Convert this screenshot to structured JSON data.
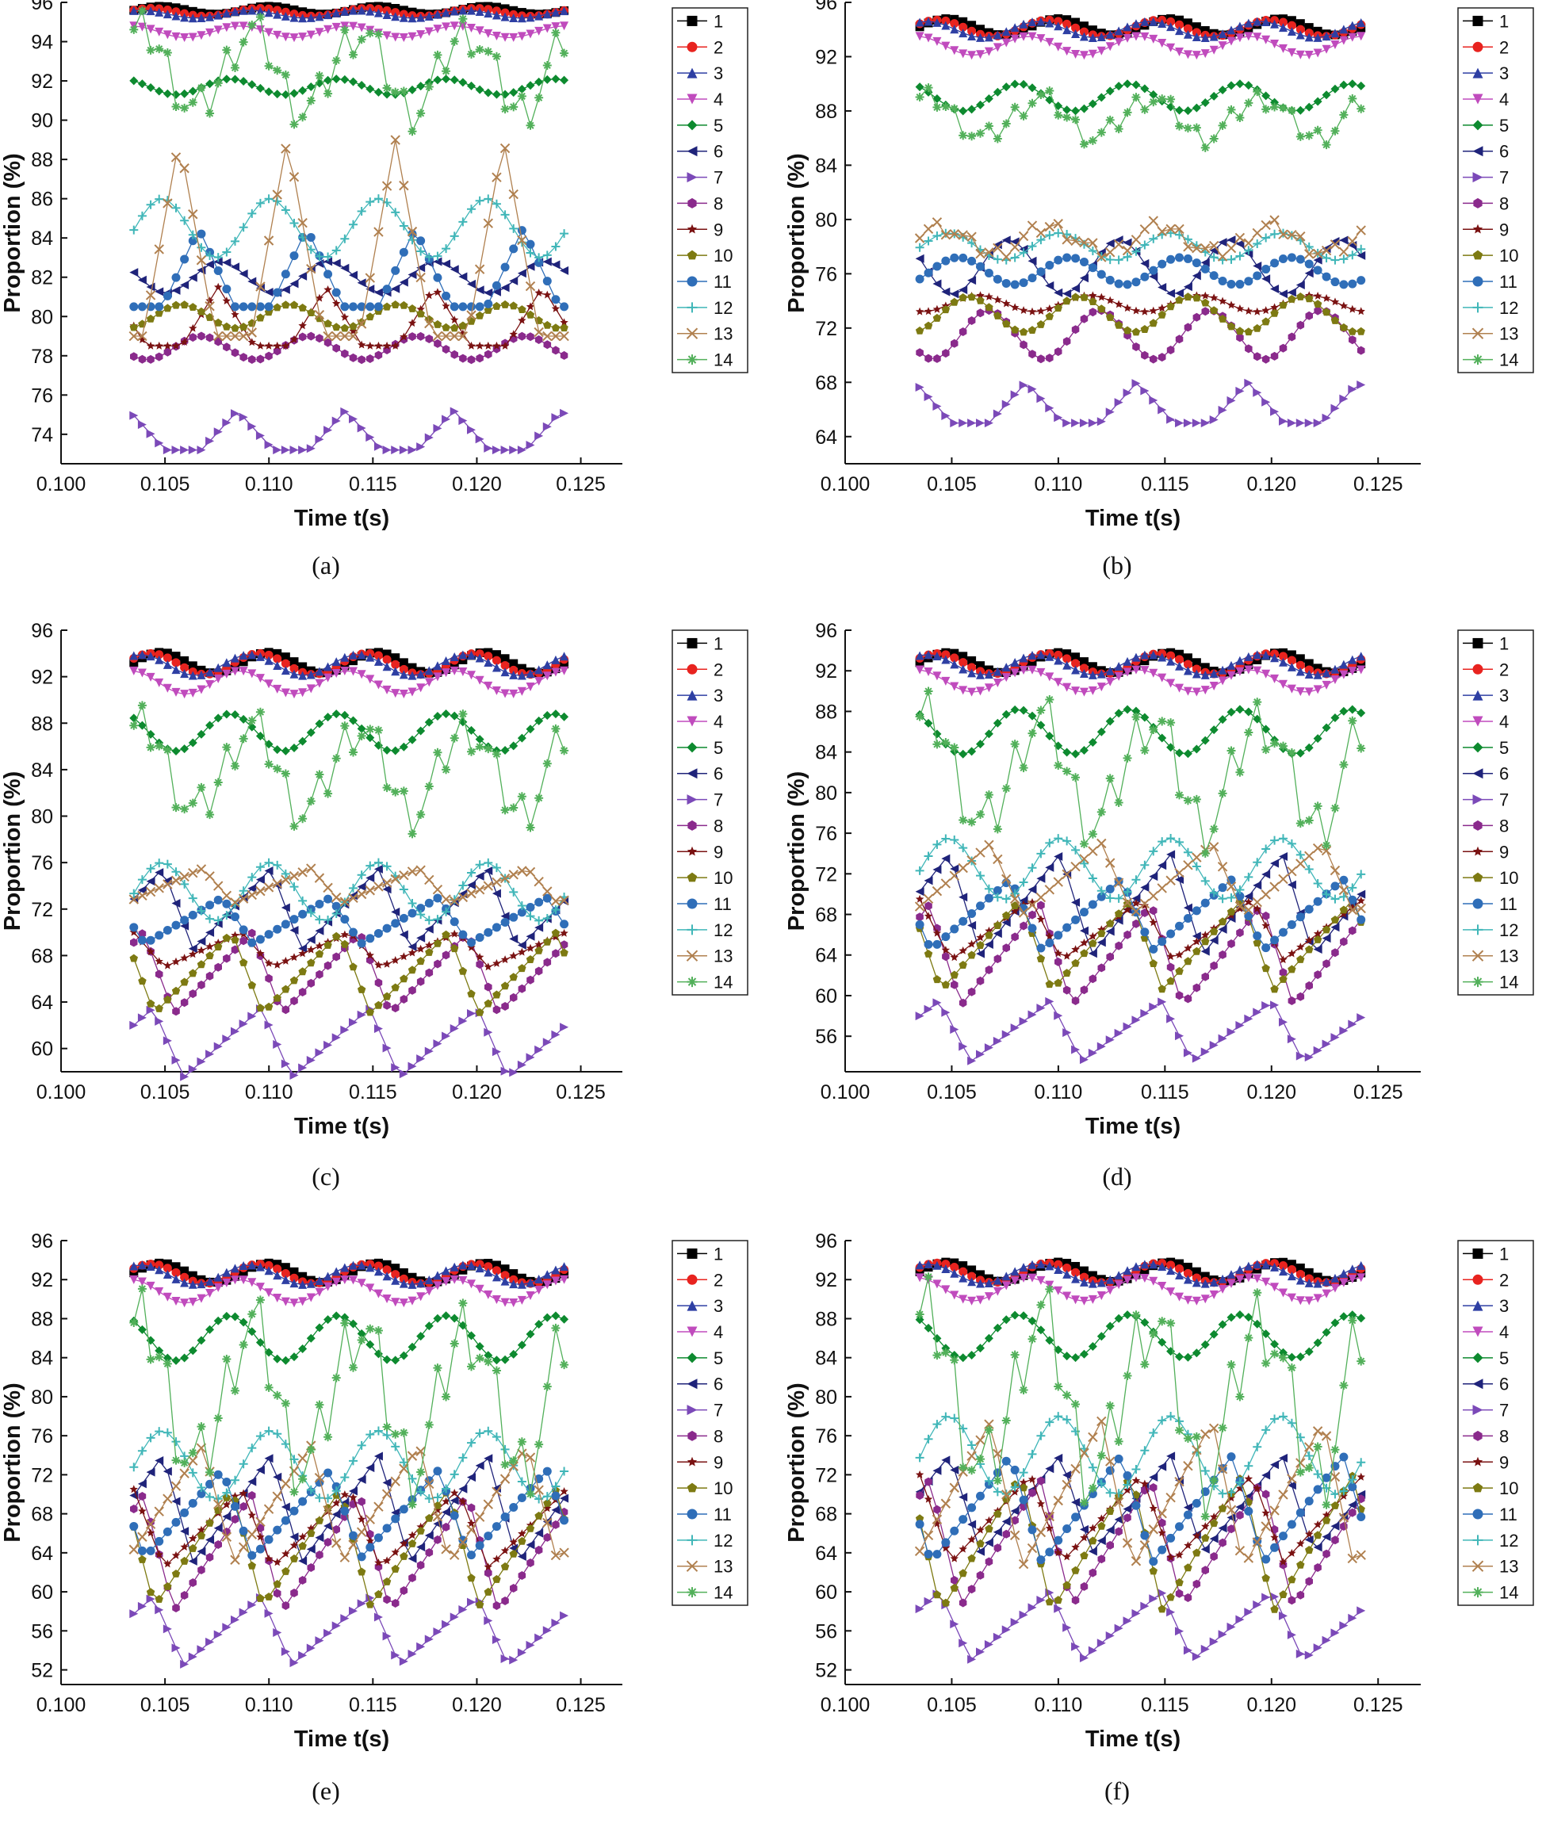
{
  "figure": {
    "panels": [
      {
        "label": "(a)"
      },
      {
        "label": "(b)"
      },
      {
        "label": "(c)"
      },
      {
        "label": "(d)"
      },
      {
        "label": "(e)"
      },
      {
        "label": "(f)"
      }
    ]
  },
  "chart_data": [
    {
      "panel": "(a)",
      "type": "line",
      "title": "",
      "xlabel": "Time t(s)",
      "ylabel": "Proportion (%)",
      "xlim": [
        0.1,
        0.127
      ],
      "ylim": [
        72.5,
        96
      ],
      "x_ticks": [
        "0.100",
        "0.105",
        "0.110",
        "0.115",
        "0.120",
        "0.125"
      ],
      "y_ticks": [
        74,
        76,
        78,
        80,
        82,
        84,
        86,
        88,
        90,
        92,
        94,
        96
      ],
      "legend": [
        "1",
        "2",
        "3",
        "4",
        "5",
        "6",
        "7",
        "8",
        "9",
        "10",
        "11",
        "12",
        "13",
        "14"
      ],
      "x_range_data": [
        0.1035,
        0.1242
      ],
      "period_s": 0.0052,
      "samples_per_series": 52,
      "series": [
        {
          "name": "1",
          "mean": 95.6,
          "amplitude": 0.2,
          "shape": "smooth"
        },
        {
          "name": "2",
          "mean": 95.5,
          "amplitude": 0.2,
          "shape": "smooth"
        },
        {
          "name": "3",
          "mean": 95.4,
          "amplitude": 0.2,
          "shape": "smooth"
        },
        {
          "name": "4",
          "mean": 94.5,
          "amplitude": 0.3,
          "shape": "smooth"
        },
        {
          "name": "5",
          "mean": 91.7,
          "amplitude": 0.4,
          "shape": "smooth"
        },
        {
          "name": "6",
          "mean": 82.0,
          "amplitude": 0.8,
          "shape": "smooth"
        },
        {
          "name": "7",
          "mean": 74.2,
          "amplitude": 1.0,
          "shape": "spike"
        },
        {
          "name": "8",
          "mean": 78.4,
          "amplitude": 0.6,
          "shape": "smooth"
        },
        {
          "name": "9",
          "mean": 80.0,
          "amplitude": 1.5,
          "shape": "spike"
        },
        {
          "name": "10",
          "mean": 80.0,
          "amplitude": 0.6,
          "shape": "smooth"
        },
        {
          "name": "11",
          "mean": 82.5,
          "amplitude": 2.0,
          "shape": "spike"
        },
        {
          "name": "12",
          "mean": 84.5,
          "amplitude": 1.5,
          "shape": "smooth"
        },
        {
          "name": "13",
          "mean": 84.0,
          "amplitude": 5.0,
          "shape": "spike"
        },
        {
          "name": "14",
          "mean": 92.5,
          "amplitude": 2.5,
          "shape": "jagged"
        }
      ]
    },
    {
      "panel": "(b)",
      "type": "line",
      "title": "",
      "xlabel": "Time t(s)",
      "ylabel": "Proportion (%)",
      "xlim": [
        0.1,
        0.127
      ],
      "ylim": [
        62,
        96
      ],
      "x_ticks": [
        "0.100",
        "0.105",
        "0.110",
        "0.115",
        "0.120",
        "0.125"
      ],
      "y_ticks": [
        64,
        68,
        72,
        76,
        80,
        84,
        88,
        92,
        96
      ],
      "legend": [
        "1",
        "2",
        "3",
        "4",
        "5",
        "6",
        "7",
        "8",
        "9",
        "10",
        "11",
        "12",
        "13",
        "14"
      ],
      "x_range_data": [
        0.1035,
        0.1242
      ],
      "period_s": 0.0052,
      "samples_per_series": 52,
      "series": [
        {
          "name": "1",
          "mean": 94.2,
          "amplitude": 0.6,
          "shape": "smooth"
        },
        {
          "name": "2",
          "mean": 94.1,
          "amplitude": 0.6,
          "shape": "smooth"
        },
        {
          "name": "3",
          "mean": 94.0,
          "amplitude": 0.6,
          "shape": "smooth"
        },
        {
          "name": "4",
          "mean": 92.8,
          "amplitude": 0.7,
          "shape": "smooth"
        },
        {
          "name": "5",
          "mean": 89.0,
          "amplitude": 1.0,
          "shape": "smooth"
        },
        {
          "name": "6",
          "mean": 76.5,
          "amplitude": 2.0,
          "shape": "smooth"
        },
        {
          "name": "7",
          "mean": 66.5,
          "amplitude": 1.5,
          "shape": "spike"
        },
        {
          "name": "8",
          "mean": 71.5,
          "amplitude": 1.8,
          "shape": "smooth"
        },
        {
          "name": "9",
          "mean": 73.8,
          "amplitude": 0.6,
          "shape": "smooth"
        },
        {
          "name": "10",
          "mean": 73.0,
          "amplitude": 1.3,
          "shape": "smooth"
        },
        {
          "name": "11",
          "mean": 76.2,
          "amplitude": 1.0,
          "shape": "smooth"
        },
        {
          "name": "12",
          "mean": 78.0,
          "amplitude": 1.0,
          "shape": "smooth"
        },
        {
          "name": "13",
          "mean": 78.5,
          "amplitude": 1.2,
          "shape": "jagged"
        },
        {
          "name": "14",
          "mean": 87.5,
          "amplitude": 1.8,
          "shape": "jagged"
        }
      ]
    },
    {
      "panel": "(c)",
      "type": "line",
      "title": "",
      "xlabel": "Time t(s)",
      "ylabel": "Proportion (%)",
      "xlim": [
        0.1,
        0.127
      ],
      "ylim": [
        58,
        96
      ],
      "x_ticks": [
        "0.100",
        "0.105",
        "0.110",
        "0.115",
        "0.120",
        "0.125"
      ],
      "y_ticks": [
        60,
        64,
        68,
        72,
        76,
        80,
        84,
        88,
        92,
        96
      ],
      "legend": [
        "1",
        "2",
        "3",
        "4",
        "5",
        "6",
        "7",
        "8",
        "9",
        "10",
        "11",
        "12",
        "13",
        "14"
      ],
      "x_range_data": [
        0.1035,
        0.1242
      ],
      "period_s": 0.0052,
      "samples_per_series": 52,
      "series": [
        {
          "name": "1",
          "mean": 93.2,
          "amplitude": 0.9,
          "shape": "smooth"
        },
        {
          "name": "2",
          "mean": 93.1,
          "amplitude": 0.9,
          "shape": "smooth"
        },
        {
          "name": "3",
          "mean": 93.0,
          "amplitude": 0.9,
          "shape": "smooth"
        },
        {
          "name": "4",
          "mean": 91.5,
          "amplitude": 1.0,
          "shape": "smooth"
        },
        {
          "name": "5",
          "mean": 87.2,
          "amplitude": 1.6,
          "shape": "smooth"
        },
        {
          "name": "6",
          "mean": 72.0,
          "amplitude": 3.5,
          "shape": "sawtooth"
        },
        {
          "name": "7",
          "mean": 60.5,
          "amplitude": 3.0,
          "shape": "sawtooth"
        },
        {
          "name": "8",
          "mean": 66.5,
          "amplitude": 3.5,
          "shape": "sawtooth"
        },
        {
          "name": "9",
          "mean": 68.5,
          "amplitude": 1.5,
          "shape": "sawtooth"
        },
        {
          "name": "10",
          "mean": 66.5,
          "amplitude": 3.5,
          "shape": "sawtooth"
        },
        {
          "name": "11",
          "mean": 71.0,
          "amplitude": 2.0,
          "shape": "sawtooth"
        },
        {
          "name": "12",
          "mean": 73.5,
          "amplitude": 2.5,
          "shape": "smooth"
        },
        {
          "name": "13",
          "mean": 74.0,
          "amplitude": 1.5,
          "shape": "sawtooth"
        },
        {
          "name": "14",
          "mean": 84.0,
          "amplitude": 4.5,
          "shape": "jagged"
        }
      ]
    },
    {
      "panel": "(d)",
      "type": "line",
      "title": "",
      "xlabel": "Time t(s)",
      "ylabel": "Proportion (%)",
      "xlim": [
        0.1,
        0.127
      ],
      "ylim": [
        52.5,
        96
      ],
      "x_ticks": [
        "0.100",
        "0.105",
        "0.110",
        "0.115",
        "0.120",
        "0.125"
      ],
      "y_ticks": [
        56,
        60,
        64,
        68,
        72,
        76,
        80,
        84,
        88,
        92,
        96
      ],
      "legend": [
        "1",
        "2",
        "3",
        "4",
        "5",
        "6",
        "7",
        "8",
        "9",
        "10",
        "11",
        "12",
        "13",
        "14"
      ],
      "x_range_data": [
        0.1035,
        0.1242
      ],
      "period_s": 0.0052,
      "samples_per_series": 52,
      "series": [
        {
          "name": "1",
          "mean": 92.8,
          "amplitude": 1.0,
          "shape": "smooth"
        },
        {
          "name": "2",
          "mean": 92.7,
          "amplitude": 1.0,
          "shape": "smooth"
        },
        {
          "name": "3",
          "mean": 92.6,
          "amplitude": 1.0,
          "shape": "smooth"
        },
        {
          "name": "4",
          "mean": 91.0,
          "amplitude": 1.1,
          "shape": "smooth"
        },
        {
          "name": "5",
          "mean": 86.0,
          "amplitude": 2.2,
          "shape": "smooth"
        },
        {
          "name": "6",
          "mean": 69.0,
          "amplitude": 5.0,
          "shape": "sawtooth"
        },
        {
          "name": "7",
          "mean": 56.5,
          "amplitude": 3.0,
          "shape": "sawtooth"
        },
        {
          "name": "8",
          "mean": 64.0,
          "amplitude": 5.0,
          "shape": "sawtooth"
        },
        {
          "name": "9",
          "mean": 66.5,
          "amplitude": 3.0,
          "shape": "sawtooth"
        },
        {
          "name": "10",
          "mean": 65.0,
          "amplitude": 4.5,
          "shape": "sawtooth"
        },
        {
          "name": "11",
          "mean": 68.0,
          "amplitude": 3.5,
          "shape": "sawtooth"
        },
        {
          "name": "12",
          "mean": 72.5,
          "amplitude": 3.0,
          "shape": "smooth"
        },
        {
          "name": "13",
          "mean": 71.5,
          "amplitude": 3.5,
          "shape": "sawtooth"
        },
        {
          "name": "14",
          "mean": 82.0,
          "amplitude": 6.5,
          "shape": "jagged"
        }
      ]
    },
    {
      "panel": "(e)",
      "type": "line",
      "title": "",
      "xlabel": "Time t(s)",
      "ylabel": "Proportion (%)",
      "xlim": [
        0.1,
        0.127
      ],
      "ylim": [
        50.5,
        96
      ],
      "x_ticks": [
        "0.100",
        "0.105",
        "0.110",
        "0.115",
        "0.120",
        "0.125"
      ],
      "y_ticks": [
        52,
        56,
        60,
        64,
        68,
        72,
        76,
        80,
        84,
        88,
        92,
        96
      ],
      "legend": [
        "1",
        "2",
        "3",
        "4",
        "5",
        "6",
        "7",
        "8",
        "9",
        "10",
        "11",
        "12",
        "13",
        "14"
      ],
      "x_range_data": [
        0.1035,
        0.1242
      ],
      "period_s": 0.0052,
      "samples_per_series": 52,
      "series": [
        {
          "name": "1",
          "mean": 92.7,
          "amplitude": 1.0,
          "shape": "smooth"
        },
        {
          "name": "2",
          "mean": 92.6,
          "amplitude": 1.0,
          "shape": "smooth"
        },
        {
          "name": "3",
          "mean": 92.5,
          "amplitude": 1.0,
          "shape": "smooth"
        },
        {
          "name": "4",
          "mean": 90.8,
          "amplitude": 1.2,
          "shape": "smooth"
        },
        {
          "name": "5",
          "mean": 86.0,
          "amplitude": 2.3,
          "shape": "smooth"
        },
        {
          "name": "6",
          "mean": 68.5,
          "amplitude": 5.5,
          "shape": "sawtooth"
        },
        {
          "name": "7",
          "mean": 56.0,
          "amplitude": 3.5,
          "shape": "sawtooth"
        },
        {
          "name": "8",
          "mean": 64.0,
          "amplitude": 6.0,
          "shape": "sawtooth"
        },
        {
          "name": "9",
          "mean": 66.5,
          "amplitude": 4.0,
          "shape": "sawtooth"
        },
        {
          "name": "10",
          "mean": 64.5,
          "amplitude": 6.0,
          "shape": "sawtooth"
        },
        {
          "name": "11",
          "mean": 68.0,
          "amplitude": 4.5,
          "shape": "sawtooth"
        },
        {
          "name": "12",
          "mean": 73.0,
          "amplitude": 3.5,
          "shape": "smooth"
        },
        {
          "name": "13",
          "mean": 69.0,
          "amplitude": 6.0,
          "shape": "sawtooth"
        },
        {
          "name": "14",
          "mean": 80.0,
          "amplitude": 9.0,
          "shape": "jagged"
        }
      ]
    },
    {
      "panel": "(f)",
      "type": "line",
      "title": "",
      "xlabel": "Time t(s)",
      "ylabel": "Proportion (%)",
      "xlim": [
        0.1,
        0.127
      ],
      "ylim": [
        50.5,
        96
      ],
      "x_ticks": [
        "0.100",
        "0.105",
        "0.110",
        "0.115",
        "0.120",
        "0.125"
      ],
      "y_ticks": [
        52,
        56,
        60,
        64,
        68,
        72,
        76,
        80,
        84,
        88,
        92,
        96
      ],
      "legend": [
        "1",
        "2",
        "3",
        "4",
        "5",
        "6",
        "7",
        "8",
        "9",
        "10",
        "11",
        "12",
        "13",
        "14"
      ],
      "x_range_data": [
        0.1035,
        0.1242
      ],
      "period_s": 0.0052,
      "samples_per_series": 52,
      "series": [
        {
          "name": "1",
          "mean": 92.8,
          "amplitude": 1.0,
          "shape": "smooth"
        },
        {
          "name": "2",
          "mean": 92.7,
          "amplitude": 1.0,
          "shape": "smooth"
        },
        {
          "name": "3",
          "mean": 92.6,
          "amplitude": 1.0,
          "shape": "smooth"
        },
        {
          "name": "4",
          "mean": 91.0,
          "amplitude": 1.2,
          "shape": "smooth"
        },
        {
          "name": "5",
          "mean": 86.2,
          "amplitude": 2.2,
          "shape": "smooth"
        },
        {
          "name": "6",
          "mean": 69.0,
          "amplitude": 5.0,
          "shape": "sawtooth"
        },
        {
          "name": "7",
          "mean": 56.5,
          "amplitude": 3.5,
          "shape": "sawtooth"
        },
        {
          "name": "8",
          "mean": 65.0,
          "amplitude": 6.5,
          "shape": "sawtooth"
        },
        {
          "name": "9",
          "mean": 67.5,
          "amplitude": 4.5,
          "shape": "sawtooth"
        },
        {
          "name": "10",
          "mean": 65.0,
          "amplitude": 7.0,
          "shape": "sawtooth"
        },
        {
          "name": "11",
          "mean": 68.5,
          "amplitude": 5.5,
          "shape": "sawtooth"
        },
        {
          "name": "12",
          "mean": 74.0,
          "amplitude": 4.0,
          "shape": "smooth"
        },
        {
          "name": "13",
          "mean": 70.0,
          "amplitude": 7.5,
          "shape": "sawtooth"
        },
        {
          "name": "14",
          "mean": 80.0,
          "amplitude": 10.0,
          "shape": "jagged"
        }
      ]
    }
  ],
  "style": {
    "series_colors": [
      "#000000",
      "#e8231f",
      "#2e3fa3",
      "#c04bbd",
      "#0d8a2f",
      "#1f237a",
      "#7b49b8",
      "#8a2a8c",
      "#7a1212",
      "#7d7a12",
      "#2f6eb8",
      "#40b6b8",
      "#b0804f",
      "#52b05a"
    ],
    "series_markers": [
      "square-icon",
      "circle-icon",
      "triangle-up-icon",
      "triangle-down-icon",
      "diamond-icon",
      "triangle-left-icon",
      "triangle-right-icon",
      "hexagon-icon",
      "star-icon",
      "pentagon-icon",
      "sphere-icon",
      "plus-icon",
      "x-cross-icon",
      "asterisk-icon"
    ]
  }
}
